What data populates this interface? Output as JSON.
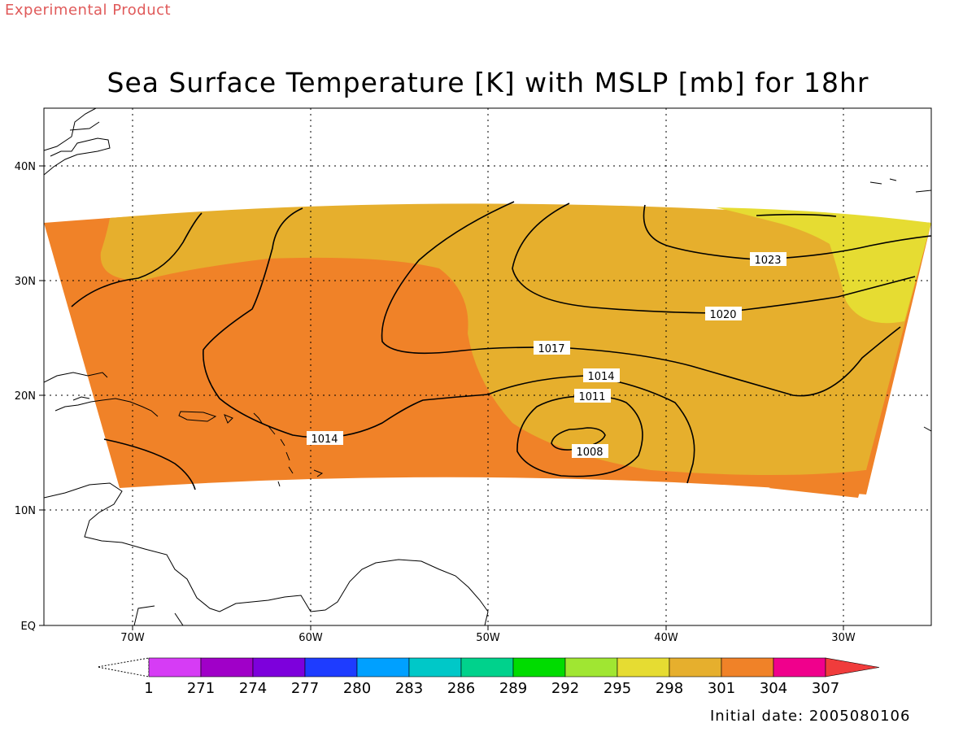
{
  "header": {
    "experimental_label": "Experimental Product",
    "title": "Sea Surface Temperature [K] with MSLP [mb] for 18hr"
  },
  "map": {
    "lat_labels": [
      "40N",
      "30N",
      "20N",
      "10N",
      "EQ"
    ],
    "lon_labels": [
      "70W",
      "60W",
      "50W",
      "40W",
      "30W"
    ]
  },
  "isobars": {
    "labels": [
      "1023",
      "1020",
      "1017",
      "1014",
      "1014",
      "1011",
      "1008"
    ]
  },
  "colorbar": {
    "labels": [
      "1",
      "271",
      "274",
      "277",
      "280",
      "283",
      "286",
      "289",
      "292",
      "295",
      "298",
      "301",
      "304",
      "307"
    ],
    "colors": [
      "#d63cf5",
      "#a000c8",
      "#7d00dc",
      "#1e3cff",
      "#00a0ff",
      "#00c8c8",
      "#00d28c",
      "#00dc00",
      "#a0e632",
      "#e6dc32",
      "#e6af2d",
      "#f08228",
      "#f0008c",
      "#f03c3c"
    ]
  },
  "footer": {
    "initial_date": "Initial date: 2005080106"
  }
}
